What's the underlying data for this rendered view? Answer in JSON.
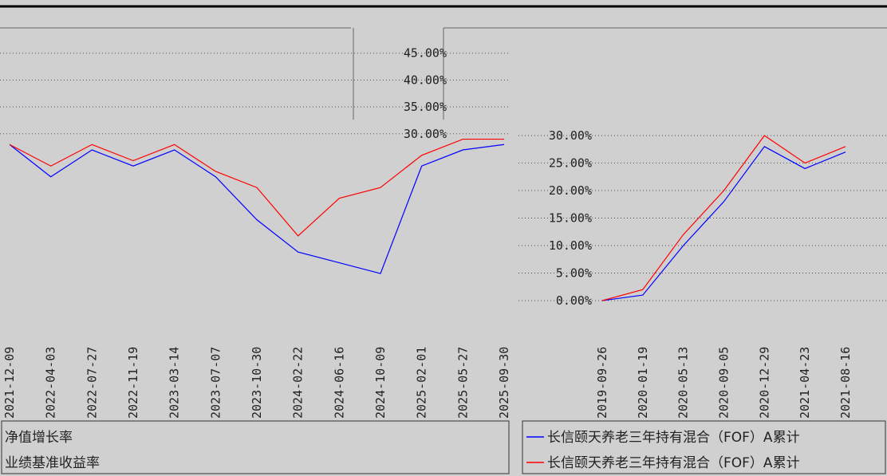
{
  "chart_data": [
    {
      "type": "line",
      "categories": [
        "2021-12-09",
        "2022-04-03",
        "2022-07-27",
        "2022-11-19",
        "2023-03-14",
        "2023-07-07",
        "2023-10-30",
        "2024-02-22",
        "2024-06-16",
        "2024-10-09",
        "2025-02-01",
        "2025-05-27",
        "2025-09-30"
      ],
      "series": [
        {
          "name": "净值增长率",
          "color": "#0000ff",
          "values": [
            28,
            22,
            27,
            24,
            27,
            22,
            14,
            8,
            6,
            4,
            24,
            27,
            28
          ]
        },
        {
          "name": "业绩基准收益率",
          "color": "#ff0000",
          "values": [
            28,
            24,
            28,
            25,
            28,
            23,
            20,
            11,
            18,
            20,
            26,
            29,
            29
          ]
        }
      ],
      "ylim": [
        0,
        50
      ],
      "yticks": [
        {
          "value": 30,
          "label": "30.00%"
        },
        {
          "value": 35,
          "label": "35.00%"
        },
        {
          "value": 40,
          "label": "40.00%"
        },
        {
          "value": 45,
          "label": "45.00%"
        }
      ],
      "grid": true
    },
    {
      "type": "line",
      "categories": [
        "2019-09-26",
        "2020-01-19",
        "2020-05-13",
        "2020-09-05",
        "2020-12-29",
        "2021-04-23",
        "2021-08-16"
      ],
      "series": [
        {
          "name": "长信颐天养老三年持有混合（FOF）A累计",
          "color": "#0000ff",
          "values": [
            0,
            1,
            10,
            18,
            28,
            24,
            27
          ]
        },
        {
          "name": "长信颐天养老三年持有混合（FOF）A累计",
          "color": "#ff0000",
          "values": [
            0,
            2,
            12,
            20,
            30,
            25,
            28
          ]
        }
      ],
      "ylim": [
        0,
        30
      ],
      "yticks": [
        {
          "value": 0,
          "label": "0.00%"
        },
        {
          "value": 5,
          "label": "5.00%"
        },
        {
          "value": 10,
          "label": "10.00%"
        },
        {
          "value": 15,
          "label": "15.00%"
        },
        {
          "value": 20,
          "label": "20.00%"
        },
        {
          "value": 25,
          "label": "25.00%"
        },
        {
          "value": 30,
          "label": "30.00%"
        }
      ],
      "grid": true
    }
  ]
}
